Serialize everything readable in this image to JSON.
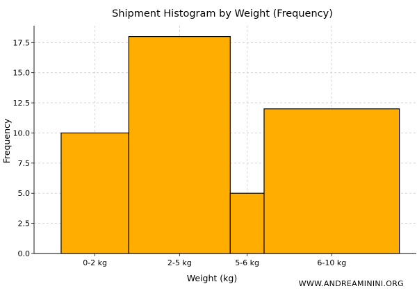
{
  "chart_data": {
    "type": "bar",
    "title": "Shipment Histogram by Weight  (Frequency)",
    "xlabel": "Weight (kg)",
    "ylabel": "Frequency",
    "bins": [
      {
        "label": "0-2 kg",
        "start": 0,
        "end": 2,
        "value": 10
      },
      {
        "label": "2-5 kg",
        "start": 2,
        "end": 5,
        "value": 18
      },
      {
        "label": "5-6 kg",
        "start": 5,
        "end": 6,
        "value": 5
      },
      {
        "label": "6-10 kg",
        "start": 6,
        "end": 10,
        "value": 12
      }
    ],
    "xlim": [
      -0.8,
      10.5
    ],
    "ylim": [
      0,
      18.9
    ],
    "yticks": [
      "0.0",
      "2.5",
      "5.0",
      "7.5",
      "10.0",
      "12.5",
      "15.0",
      "17.5"
    ],
    "grid": true,
    "bar_color": "#FFAE00",
    "edge_color": "#000000",
    "grid_color": "#cccccc"
  },
  "watermark": "WWW.ANDREAMININI.ORG"
}
